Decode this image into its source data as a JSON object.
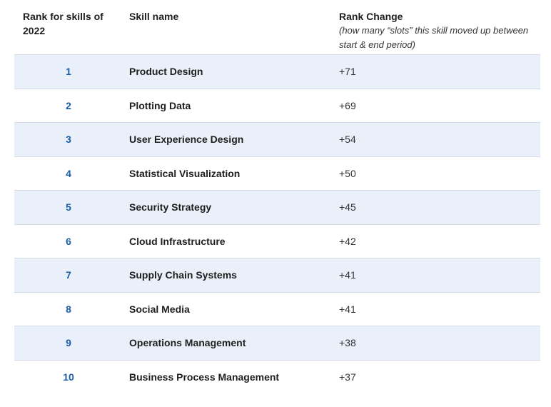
{
  "header": {
    "rank_label": "Rank for skills of 2022",
    "skill_label": "Skill name",
    "change_label": "Rank Change",
    "change_note": "(how many “slots” this skill moved up between start & end period)"
  },
  "rows": [
    {
      "rank": "1",
      "skill": "Product Design",
      "change": "+71"
    },
    {
      "rank": "2",
      "skill": "Plotting Data",
      "change": "+69"
    },
    {
      "rank": "3",
      "skill": "User Experience Design",
      "change": "+54"
    },
    {
      "rank": "4",
      "skill": "Statistical Visualization",
      "change": "+50"
    },
    {
      "rank": "5",
      "skill": "Security Strategy",
      "change": "+45"
    },
    {
      "rank": "6",
      "skill": "Cloud Infrastructure",
      "change": "+42"
    },
    {
      "rank": "7",
      "skill": "Supply Chain Systems",
      "change": "+41"
    },
    {
      "rank": "8",
      "skill": "Social Media",
      "change": "+41"
    },
    {
      "rank": "9",
      "skill": "Operations Management",
      "change": "+38"
    },
    {
      "rank": "10",
      "skill": "Business Process Management",
      "change": "+37"
    }
  ],
  "colors": {
    "rank_text": "#1b5ea8",
    "shaded_row": "#e9f0f9",
    "divider": "#d3dce6"
  }
}
